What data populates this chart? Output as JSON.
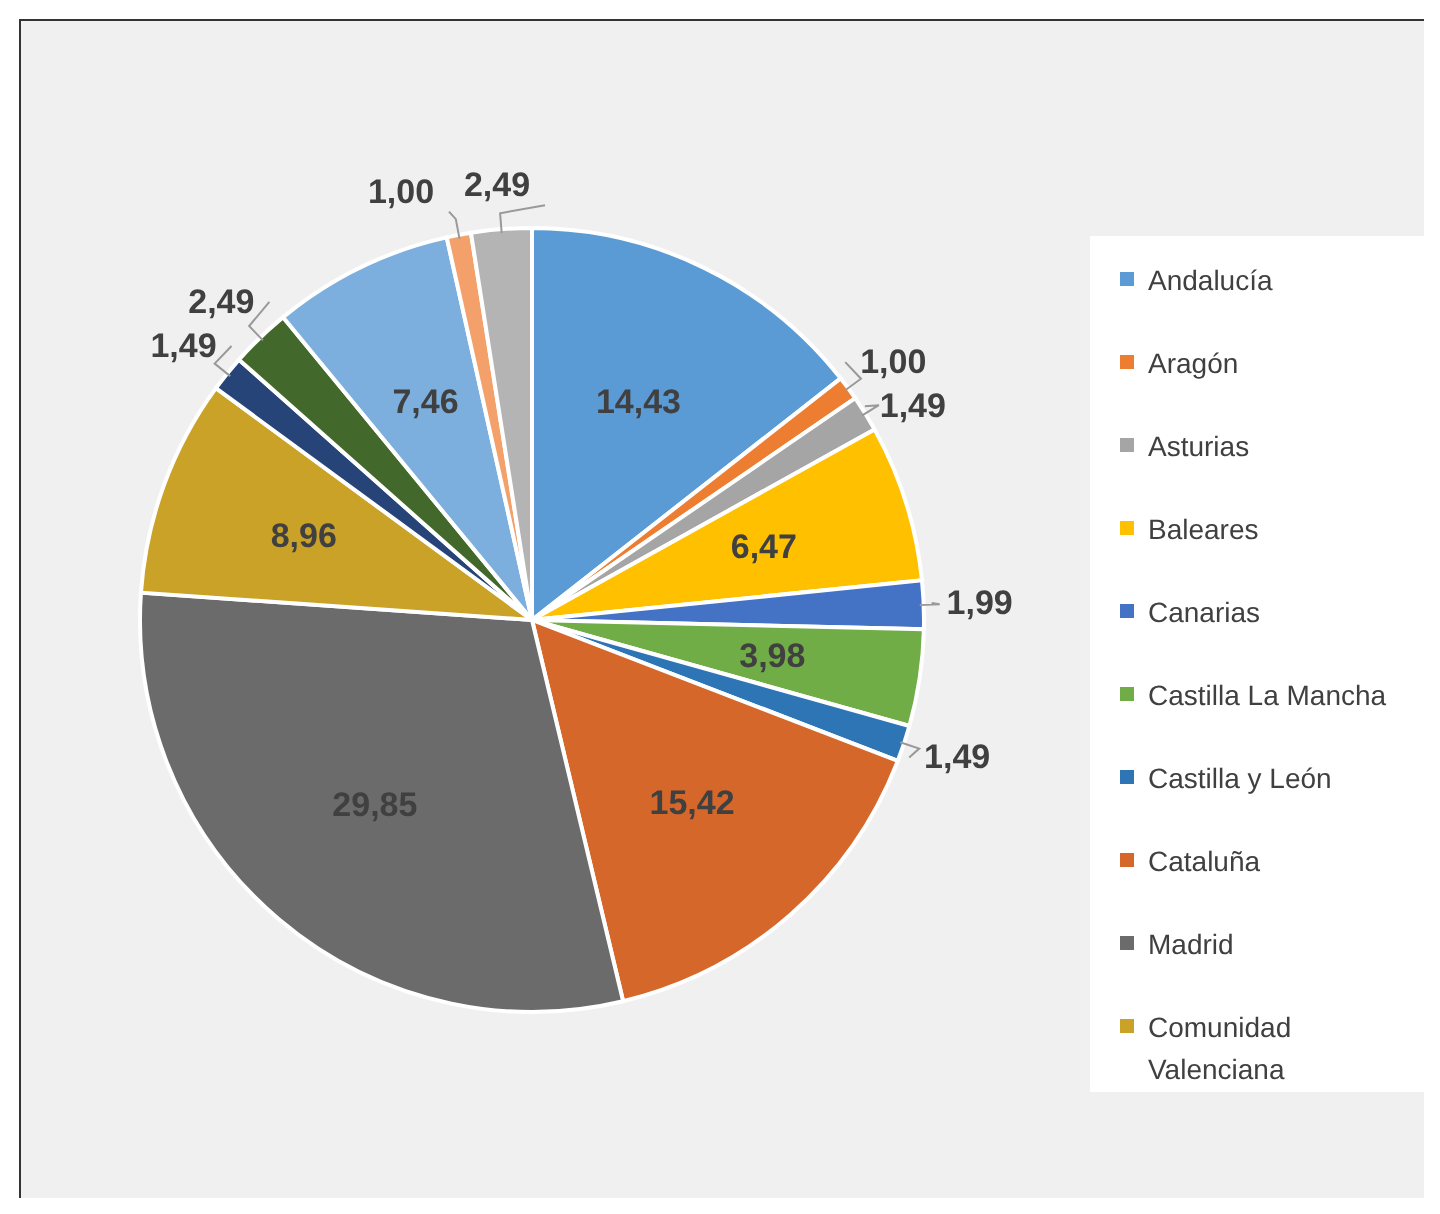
{
  "chart_data": {
    "type": "pie",
    "categories": [
      "Andalucía",
      "Aragón",
      "Asturias",
      "Baleares",
      "Canarias",
      "Castilla La Mancha",
      "Castilla y León",
      "Cataluña",
      "Madrid",
      "Comunidad Valenciana",
      null,
      null,
      null,
      null,
      null
    ],
    "values": [
      14.43,
      1.0,
      1.49,
      6.47,
      1.99,
      3.98,
      1.49,
      15.42,
      29.85,
      8.96,
      1.49,
      2.49,
      7.46,
      1.0,
      2.49
    ],
    "value_labels": [
      "14,43",
      "1,00",
      "1,49",
      "6,47",
      "1,99",
      "3,98",
      "1,49",
      "15,42",
      "29,85",
      "8,96",
      "1,49",
      "2,49",
      "7,46",
      "1,00",
      "2,49"
    ],
    "colors": [
      "#5b9bd5",
      "#ed7d31",
      "#a5a5a5",
      "#ffc000",
      "#4472c4",
      "#70ad47",
      "#2e75b6",
      "#d5672a",
      "#6b6b6b",
      "#c9a227",
      "#264478",
      "#43682b",
      "#7cafdd",
      "#f4a06a",
      "#b4b4b4"
    ],
    "legend": "right"
  }
}
